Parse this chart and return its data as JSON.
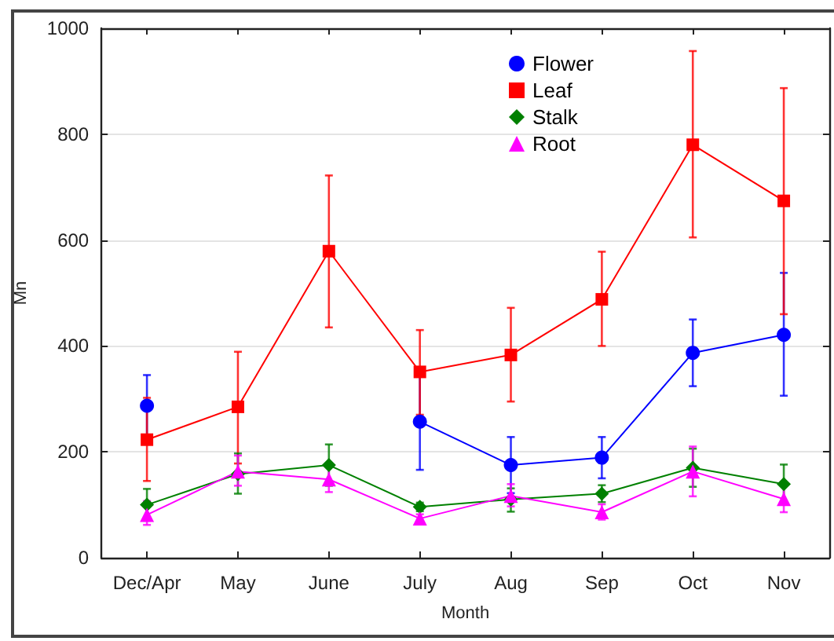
{
  "chart_data": {
    "type": "line",
    "xlabel": "Month",
    "ylabel": "Mn",
    "categories": [
      "Dec/Apr",
      "May",
      "June",
      "July",
      "Aug",
      "Sep",
      "Oct",
      "Nov"
    ],
    "ylim": [
      0,
      1000
    ],
    "yticks": [
      0,
      200,
      400,
      600,
      800,
      1000
    ],
    "grid": "y",
    "legend": "top",
    "line_style": "solid",
    "series": [
      {
        "name": "Flower",
        "color": "#0000ff",
        "marker": "circle",
        "values": [
          287,
          null,
          null,
          257,
          175,
          189,
          387,
          421
        ],
        "errors": [
          [
            228,
            345
          ],
          null,
          null,
          [
            166,
            346
          ],
          [
            122,
            228
          ],
          [
            150,
            228
          ],
          [
            324,
            450
          ],
          [
            306,
            538
          ]
        ]
      },
      {
        "name": "Leaf",
        "color": "#ff0000",
        "marker": "square",
        "values": [
          223,
          285,
          579,
          351,
          383,
          488,
          780,
          674
        ],
        "errors": [
          [
            145,
            302
          ],
          [
            178,
            389
          ],
          [
            435,
            722
          ],
          [
            270,
            430
          ],
          [
            295,
            472
          ],
          [
            400,
            578
          ],
          [
            605,
            957
          ],
          [
            460,
            887
          ]
        ]
      },
      {
        "name": "Stalk",
        "color": "#008000",
        "marker": "diamond",
        "values": [
          100,
          158,
          175,
          96,
          110,
          121,
          170,
          139
        ],
        "errors": [
          [
            70,
            130
          ],
          [
            121,
            197
          ],
          [
            136,
            214
          ],
          [
            88,
            104
          ],
          [
            87,
            131
          ],
          [
            105,
            137
          ],
          [
            134,
            206
          ],
          [
            103,
            176
          ]
        ]
      },
      {
        "name": "Root",
        "color": "#ff00ff",
        "marker": "triangle",
        "values": [
          81,
          163,
          148,
          74,
          117,
          86,
          163,
          111
        ],
        "errors": [
          [
            62,
            107
          ],
          [
            136,
            193
          ],
          [
            124,
            174
          ],
          [
            66,
            82
          ],
          [
            97,
            139
          ],
          [
            72,
            101
          ],
          [
            116,
            210
          ],
          [
            86,
            139
          ]
        ]
      }
    ]
  }
}
